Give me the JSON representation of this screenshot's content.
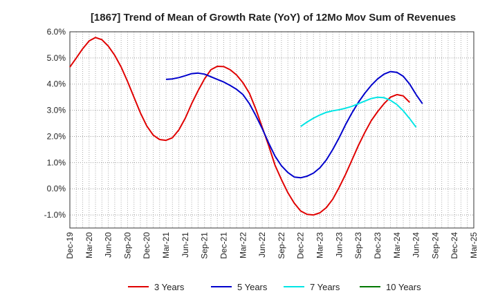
{
  "chart_data": {
    "type": "line",
    "title": "[1867]  Trend of Mean of Growth Rate (YoY) of 12Mo Mov Sum of Revenues",
    "xlabel": "",
    "ylabel": "",
    "x_ticks": [
      "Dec-19",
      "Mar-20",
      "Jun-20",
      "Sep-20",
      "Dec-20",
      "Mar-21",
      "Jun-21",
      "Sep-21",
      "Dec-21",
      "Mar-22",
      "Jun-22",
      "Sep-22",
      "Dec-22",
      "Mar-23",
      "Jun-23",
      "Sep-23",
      "Dec-23",
      "Mar-24",
      "Jun-24",
      "Sep-24",
      "Dec-24",
      "Mar-25"
    ],
    "y_ticks": [
      "6.0%",
      "5.0%",
      "4.0%",
      "3.0%",
      "2.0%",
      "1.0%",
      "0.0%",
      "-1.0%"
    ],
    "y_tick_values": [
      6,
      5,
      4,
      3,
      2,
      1,
      0,
      -1
    ],
    "ylim": [
      -1.5,
      6.0
    ],
    "grid": "dotted",
    "legend_position": "bottom",
    "series": [
      {
        "name": "3 Years",
        "color": "#e00000",
        "start_index": 0,
        "values": [
          4.65,
          5.0,
          5.35,
          5.65,
          5.78,
          5.7,
          5.45,
          5.1,
          4.65,
          4.1,
          3.5,
          2.9,
          2.4,
          2.05,
          1.88,
          1.85,
          1.95,
          2.25,
          2.7,
          3.25,
          3.75,
          4.2,
          4.55,
          4.68,
          4.67,
          4.55,
          4.35,
          4.05,
          3.65,
          3.05,
          2.35,
          1.65,
          0.9,
          0.35,
          -0.15,
          -0.55,
          -0.85,
          -0.98,
          -1.0,
          -0.92,
          -0.72,
          -0.4,
          0.05,
          0.55,
          1.1,
          1.65,
          2.15,
          2.6,
          2.95,
          3.25,
          3.5,
          3.6,
          3.55,
          3.3
        ]
      },
      {
        "name": "5 Years",
        "color": "#0000cc",
        "start_index": 15,
        "values": [
          4.18,
          4.2,
          4.25,
          4.32,
          4.4,
          4.42,
          4.38,
          4.28,
          4.18,
          4.08,
          3.95,
          3.8,
          3.6,
          3.25,
          2.8,
          2.3,
          1.75,
          1.25,
          0.88,
          0.62,
          0.45,
          0.42,
          0.48,
          0.6,
          0.8,
          1.1,
          1.5,
          1.95,
          2.45,
          2.9,
          3.3,
          3.65,
          3.95,
          4.2,
          4.38,
          4.48,
          4.45,
          4.3,
          4.0,
          3.6,
          3.25
        ]
      },
      {
        "name": "7 Years",
        "color": "#00e5e5",
        "start_index": 36,
        "values": [
          2.38,
          2.55,
          2.7,
          2.82,
          2.92,
          2.98,
          3.02,
          3.08,
          3.15,
          3.25,
          3.35,
          3.45,
          3.5,
          3.48,
          3.38,
          3.22,
          2.98,
          2.68,
          2.35
        ]
      },
      {
        "name": "10 Years",
        "color": "#007700",
        "start_index": 0,
        "values": []
      }
    ]
  }
}
